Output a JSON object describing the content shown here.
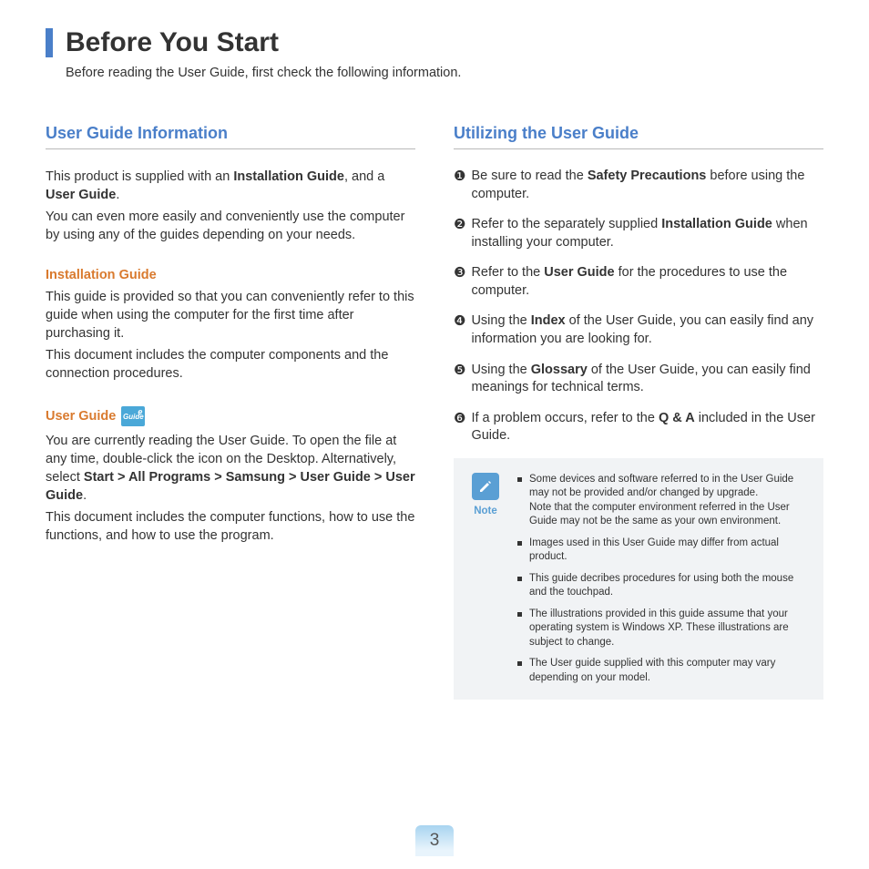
{
  "title": "Before You Start",
  "subtitle": "Before reading the User Guide, first check the following information.",
  "left": {
    "heading": "User Guide Information",
    "intro1_pre": "This product is supplied with an ",
    "intro1_b1": "Installation Guide",
    "intro1_mid": ", and a ",
    "intro1_b2": "User Guide",
    "intro1_post": ".",
    "intro2": "You can even more easily and conveniently use the computer by using any of the guides depending on your needs.",
    "install_heading": "Installation Guide",
    "install_p1": "This guide is provided so that you can conveniently refer to this guide when using the computer for the first time after purchasing it.",
    "install_p2": "This document includes the computer components and the connection procedures.",
    "userguide_heading": "User Guide",
    "icon_text": "Guide",
    "ug_p1": "You are currently reading the User Guide. To open the file at any time, double-click the icon on the Desktop. Alternatively, select ",
    "ug_p1_b": "Start > All Programs > Samsung > User Guide > User Guide",
    "ug_p1_post": ".",
    "ug_p2": "This document includes the computer functions, how to use the functions, and how to use the program."
  },
  "right": {
    "heading": "Utilizing the User Guide",
    "items": [
      {
        "m": "❶",
        "pre": "Be sure to read the ",
        "b": "Safety Precautions",
        "post": " before using the computer."
      },
      {
        "m": "❷",
        "pre": "Refer to the separately supplied ",
        "b": "Installation Guide",
        "post": " when installing your computer."
      },
      {
        "m": "❸",
        "pre": "Refer to the ",
        "b": "User Guide",
        "post": " for the procedures to use the computer."
      },
      {
        "m": "❹",
        "pre": "Using the ",
        "b": "Index",
        "post": " of the User Guide, you can easily find any information you are looking for."
      },
      {
        "m": "❺",
        "pre": "Using the ",
        "b": "Glossary",
        "post": " of the User Guide, you can easily find meanings for technical terms."
      },
      {
        "m": "❻",
        "pre": "If a problem occurs, refer to the ",
        "b": "Q & A",
        "post": " included in the User Guide."
      }
    ],
    "note_label": "Note",
    "notes": [
      "Some devices and software referred to in the User Guide may not be provided and/or changed by upgrade.\nNote that the computer environment referred in the User Guide may not be the same as your own environment.",
      "Images used in this User Guide may differ from actual product.",
      "This guide decribes procedures for using both the mouse and the touchpad.",
      "The illustrations provided in this guide assume that your operating system is Windows XP. These illustrations are subject to change.",
      "The User guide supplied with this computer may vary depending on your model."
    ]
  },
  "page_number": "3",
  "colors": {
    "accent_blue": "#4a7fc9",
    "accent_orange": "#d97a2e",
    "note_bg": "#f1f3f5",
    "note_icon": "#5a9fd4"
  }
}
